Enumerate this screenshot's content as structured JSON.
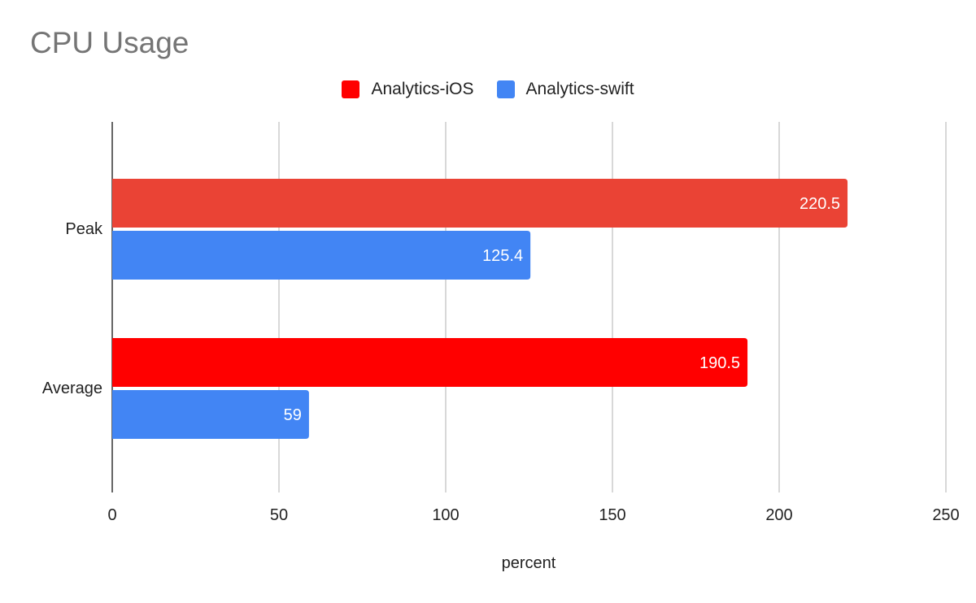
{
  "chart_data": {
    "type": "bar",
    "orientation": "horizontal",
    "title": "CPU Usage",
    "xlabel": "percent",
    "ylabel": "",
    "categories": [
      "Peak",
      "Average"
    ],
    "series": [
      {
        "name": "Analytics-iOS",
        "values": [
          220.5,
          190.5
        ],
        "color": "#FF0000",
        "point_colors": [
          "#EA4335",
          "#FF0000"
        ]
      },
      {
        "name": "Analytics-swift",
        "values": [
          125.4,
          59
        ],
        "color": "#4285F4"
      }
    ],
    "data_labels": [
      [
        "220.5",
        "190.5"
      ],
      [
        "125.4",
        "59"
      ]
    ],
    "xlim": [
      0,
      250
    ],
    "xticks": [
      "0",
      "50",
      "100",
      "150",
      "200",
      "250"
    ],
    "grid": true,
    "legend_position": "top"
  }
}
